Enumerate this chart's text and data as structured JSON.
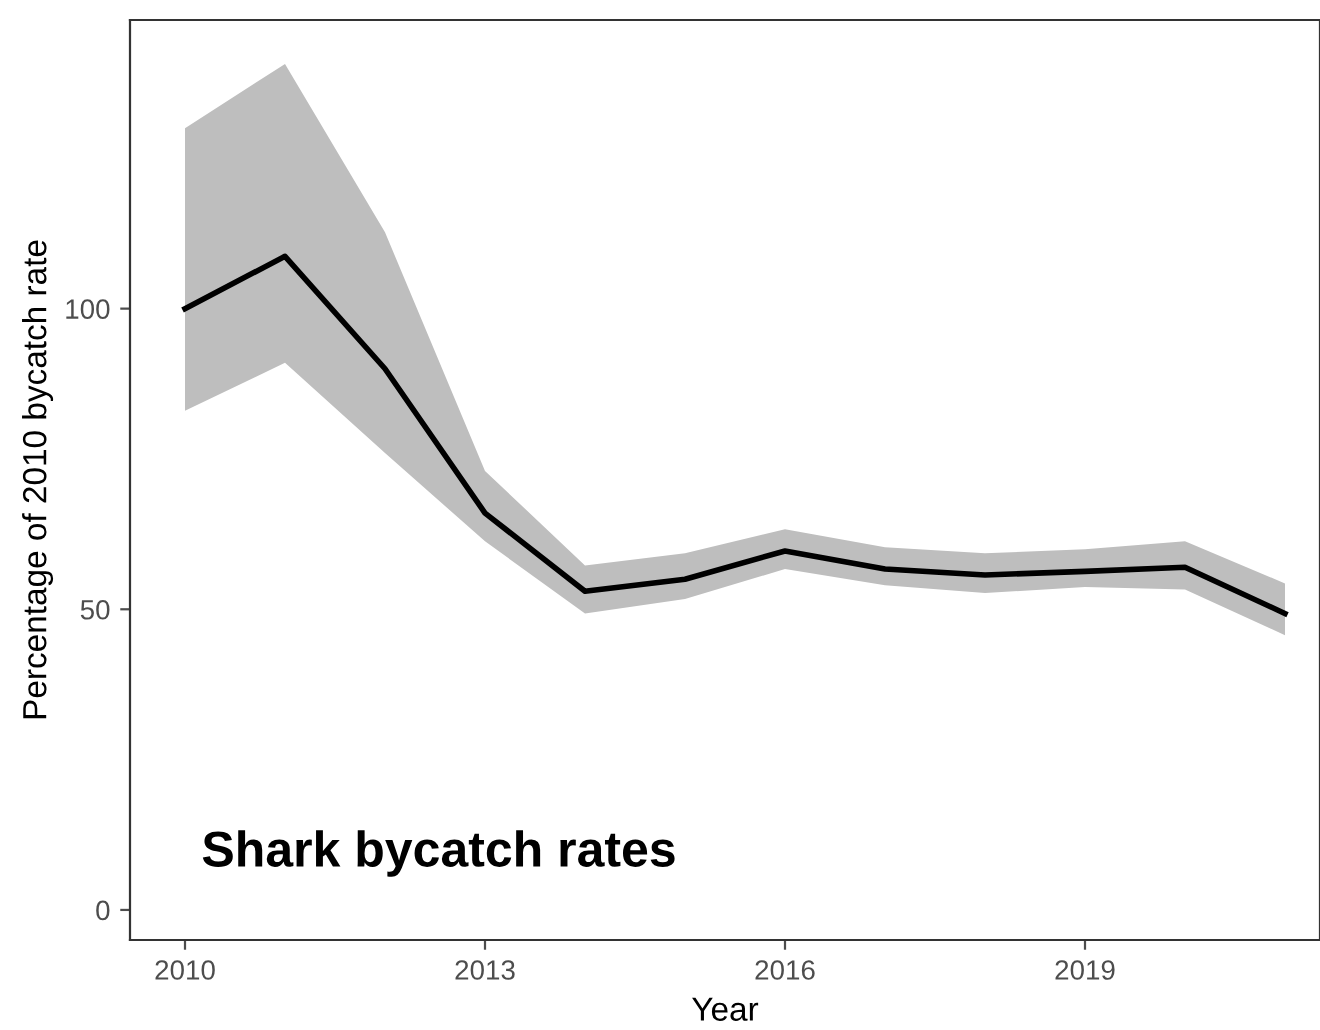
{
  "chart_data": {
    "type": "line",
    "xlabel": "Year",
    "ylabel": "Percentage of 2010 bycatch rate",
    "x": [
      2010,
      2011,
      2012,
      2013,
      2014,
      2015,
      2016,
      2017,
      2018,
      2019,
      2020,
      2021
    ],
    "series": [
      {
        "color": "#000000",
        "values": [
          100,
          108.7,
          90,
          66,
          53,
          55,
          59.7,
          56.7,
          55.7,
          56.3,
          57,
          49.3
        ],
        "lower": [
          83,
          91,
          76,
          61.3,
          49.3,
          51.7,
          56.7,
          54,
          52.7,
          53.7,
          53.3,
          45.7
        ],
        "upper": [
          130,
          140.7,
          112.7,
          73,
          57.3,
          59.3,
          63.3,
          60.3,
          59.3,
          60,
          61.3,
          54.3
        ]
      }
    ],
    "xlim": [
      2009.45,
      2021.35
    ],
    "ylim": [
      -5,
      148
    ],
    "xticks": [
      2010,
      2013,
      2016,
      2019
    ],
    "yticks": [
      0,
      50,
      100
    ],
    "grid": false,
    "annotations": [
      "Shark bycatch rates"
    ]
  }
}
